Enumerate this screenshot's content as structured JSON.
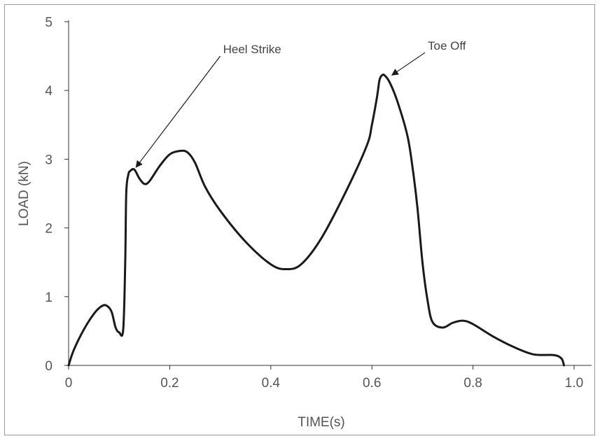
{
  "chart_data": {
    "type": "line",
    "title": "",
    "xlabel": "TIME(s)",
    "ylabel": "LOAD (kN)",
    "xlim": [
      0,
      1.0
    ],
    "ylim": [
      0,
      5
    ],
    "xticks": [
      {
        "value": 0,
        "label": "0"
      },
      {
        "value": 0.2,
        "label": "0.2"
      },
      {
        "value": 0.4,
        "label": "0.4"
      },
      {
        "value": 0.6,
        "label": "0.6"
      },
      {
        "value": 0.8,
        "label": "0.8"
      },
      {
        "value": 1.0,
        "label": "1.0"
      }
    ],
    "yticks": [
      {
        "value": 0,
        "label": "0"
      },
      {
        "value": 1,
        "label": "1"
      },
      {
        "value": 2,
        "label": "2"
      },
      {
        "value": 3,
        "label": "3"
      },
      {
        "value": 4,
        "label": "4"
      },
      {
        "value": 5,
        "label": "5"
      }
    ],
    "grid": false,
    "series": [
      {
        "color": "#1a1a1a",
        "x": [
          0,
          0.01,
          0.03,
          0.05,
          0.065,
          0.075,
          0.085,
          0.093,
          0.1,
          0.108,
          0.112,
          0.114,
          0.118,
          0.122,
          0.13,
          0.14,
          0.15,
          0.16,
          0.18,
          0.2,
          0.22,
          0.235,
          0.25,
          0.27,
          0.3,
          0.35,
          0.4,
          0.43,
          0.46,
          0.5,
          0.55,
          0.59,
          0.6,
          0.61,
          0.615,
          0.62,
          0.625,
          0.635,
          0.65,
          0.67,
          0.68,
          0.69,
          0.7,
          0.71,
          0.72,
          0.74,
          0.76,
          0.78,
          0.8,
          0.84,
          0.88,
          0.92,
          0.96,
          0.975,
          0.98
        ],
        "y": [
          0,
          0.22,
          0.52,
          0.75,
          0.86,
          0.87,
          0.78,
          0.55,
          0.48,
          0.52,
          1.5,
          2.5,
          2.77,
          2.83,
          2.85,
          2.72,
          2.64,
          2.68,
          2.9,
          3.07,
          3.12,
          3.1,
          2.95,
          2.6,
          2.25,
          1.8,
          1.47,
          1.4,
          1.47,
          1.85,
          2.55,
          3.2,
          3.5,
          3.9,
          4.15,
          4.22,
          4.22,
          4.12,
          3.85,
          3.35,
          2.9,
          2.3,
          1.5,
          0.95,
          0.63,
          0.55,
          0.62,
          0.65,
          0.6,
          0.42,
          0.27,
          0.16,
          0.15,
          0.1,
          0
        ]
      }
    ],
    "annotations": [
      {
        "text": "Heel Strike",
        "point": [
          0.13,
          2.85
        ],
        "label_at": [
          0.3,
          4.5
        ]
      },
      {
        "text": "Toe Off",
        "point": [
          0.635,
          4.2
        ],
        "label_at": [
          0.705,
          4.55
        ]
      }
    ]
  }
}
